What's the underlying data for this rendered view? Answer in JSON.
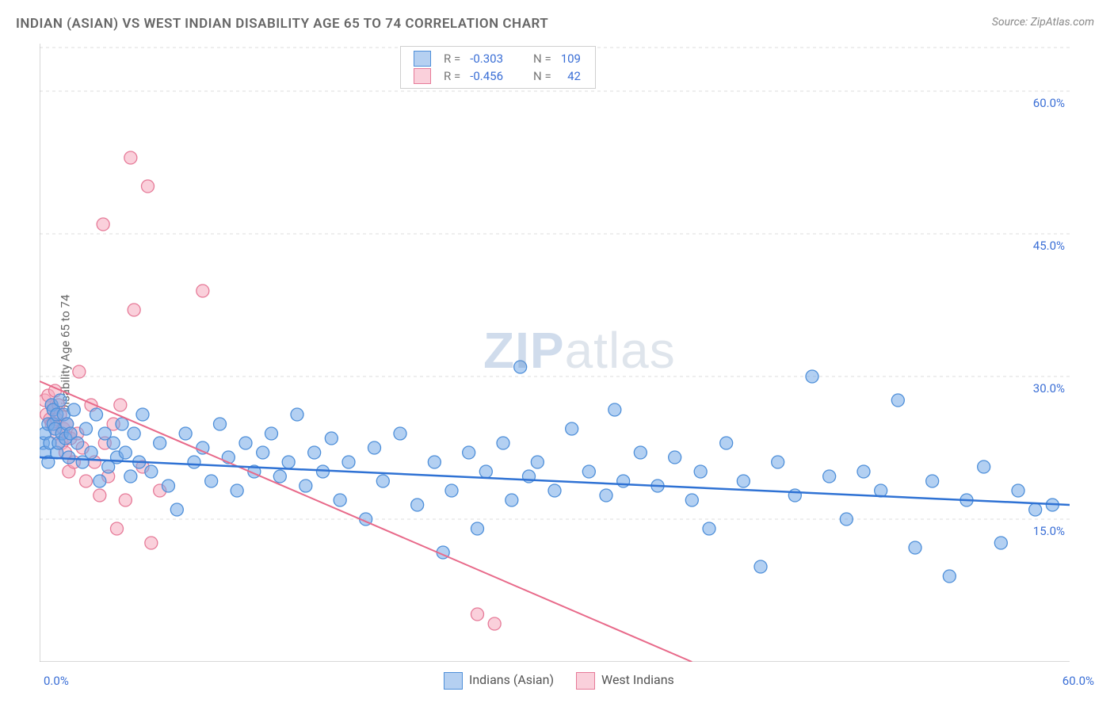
{
  "title": "INDIAN (ASIAN) VS WEST INDIAN DISABILITY AGE 65 TO 74 CORRELATION CHART",
  "source_label": "Source:",
  "source_name": "ZipAtlas.com",
  "y_axis_label": "Disability Age 65 to 74",
  "watermark_zip": "ZIP",
  "watermark_atlas": "atlas",
  "chart": {
    "type": "scatter",
    "xlim": [
      0,
      60
    ],
    "ylim": [
      0,
      65
    ],
    "y_ticks": [
      15,
      30,
      45,
      60
    ],
    "y_tick_labels": [
      "15.0%",
      "30.0%",
      "45.0%",
      "60.0%"
    ],
    "x_tick_min_label": "0.0%",
    "x_tick_max_label": "60.0%",
    "background_color": "#ffffff",
    "grid_color": "#dcdcdc",
    "marker_radius": 8,
    "series": [
      {
        "name": "Indians (Asian)",
        "color_fill": "rgba(116,170,231,0.55)",
        "color_stroke": "#4e8fd9",
        "trend_color": "#2f72d4",
        "R": "-0.303",
        "N": "109",
        "trend": {
          "x1": 0,
          "y1": 21.5,
          "x2": 60,
          "y2": 16.5
        },
        "points": [
          [
            0.2,
            23
          ],
          [
            0.3,
            24
          ],
          [
            0.3,
            22
          ],
          [
            0.5,
            25
          ],
          [
            0.5,
            21
          ],
          [
            0.6,
            23
          ],
          [
            0.7,
            27
          ],
          [
            0.8,
            26.5
          ],
          [
            0.8,
            25
          ],
          [
            0.9,
            24.5
          ],
          [
            1.0,
            26
          ],
          [
            1.0,
            22
          ],
          [
            1.1,
            23
          ],
          [
            1.2,
            27.5
          ],
          [
            1.3,
            24
          ],
          [
            1.4,
            26
          ],
          [
            1.5,
            23.5
          ],
          [
            1.6,
            25
          ],
          [
            1.7,
            21.5
          ],
          [
            1.8,
            24
          ],
          [
            2.0,
            26.5
          ],
          [
            2.2,
            23
          ],
          [
            2.5,
            21
          ],
          [
            2.7,
            24.5
          ],
          [
            3.0,
            22
          ],
          [
            3.3,
            26
          ],
          [
            3.5,
            19
          ],
          [
            3.8,
            24
          ],
          [
            4.0,
            20.5
          ],
          [
            4.3,
            23
          ],
          [
            4.5,
            21.5
          ],
          [
            4.8,
            25
          ],
          [
            5.0,
            22
          ],
          [
            5.3,
            19.5
          ],
          [
            5.5,
            24
          ],
          [
            5.8,
            21
          ],
          [
            6.0,
            26
          ],
          [
            6.5,
            20
          ],
          [
            7.0,
            23
          ],
          [
            7.5,
            18.5
          ],
          [
            8.0,
            16
          ],
          [
            8.5,
            24
          ],
          [
            9.0,
            21
          ],
          [
            9.5,
            22.5
          ],
          [
            10.0,
            19
          ],
          [
            10.5,
            25
          ],
          [
            11.0,
            21.5
          ],
          [
            11.5,
            18
          ],
          [
            12.0,
            23
          ],
          [
            12.5,
            20
          ],
          [
            13.0,
            22
          ],
          [
            13.5,
            24
          ],
          [
            14.0,
            19.5
          ],
          [
            14.5,
            21
          ],
          [
            15.0,
            26
          ],
          [
            15.5,
            18.5
          ],
          [
            16.0,
            22
          ],
          [
            16.5,
            20
          ],
          [
            17.0,
            23.5
          ],
          [
            17.5,
            17
          ],
          [
            18.0,
            21
          ],
          [
            19.0,
            15
          ],
          [
            19.5,
            22.5
          ],
          [
            20.0,
            19
          ],
          [
            21.0,
            24
          ],
          [
            22.0,
            16.5
          ],
          [
            23.0,
            21
          ],
          [
            23.5,
            11.5
          ],
          [
            24.0,
            18
          ],
          [
            25.0,
            22
          ],
          [
            25.5,
            14
          ],
          [
            26.0,
            20
          ],
          [
            27.0,
            23
          ],
          [
            27.5,
            17
          ],
          [
            28.0,
            31
          ],
          [
            28.5,
            19.5
          ],
          [
            29.0,
            21
          ],
          [
            30.0,
            18
          ],
          [
            31.0,
            24.5
          ],
          [
            32.0,
            20
          ],
          [
            33.0,
            17.5
          ],
          [
            33.5,
            26.5
          ],
          [
            34.0,
            19
          ],
          [
            35.0,
            22
          ],
          [
            36.0,
            18.5
          ],
          [
            37.0,
            21.5
          ],
          [
            38.0,
            17
          ],
          [
            38.5,
            20
          ],
          [
            39.0,
            14
          ],
          [
            40.0,
            23
          ],
          [
            41.0,
            19
          ],
          [
            42.0,
            10
          ],
          [
            43.0,
            21
          ],
          [
            44.0,
            17.5
          ],
          [
            45.0,
            30
          ],
          [
            46.0,
            19.5
          ],
          [
            47.0,
            15
          ],
          [
            48.0,
            20
          ],
          [
            49.0,
            18
          ],
          [
            50.0,
            27.5
          ],
          [
            51.0,
            12
          ],
          [
            52.0,
            19
          ],
          [
            53.0,
            9
          ],
          [
            54.0,
            17
          ],
          [
            55.0,
            20.5
          ],
          [
            56.0,
            12.5
          ],
          [
            57.0,
            18
          ],
          [
            58.0,
            16
          ],
          [
            59.0,
            16.5
          ]
        ]
      },
      {
        "name": "West Indians",
        "color_fill": "rgba(245,170,190,0.55)",
        "color_stroke": "#e67a98",
        "trend_color": "#e86a8a",
        "R": "-0.456",
        "N": "42",
        "trend": {
          "x1": 0,
          "y1": 29.5,
          "x2": 38,
          "y2": 0
        },
        "points": [
          [
            0.3,
            27.5
          ],
          [
            0.4,
            26
          ],
          [
            0.5,
            28
          ],
          [
            0.6,
            25.5
          ],
          [
            0.7,
            27
          ],
          [
            0.7,
            25
          ],
          [
            0.8,
            26.5
          ],
          [
            0.9,
            28.5
          ],
          [
            1.0,
            25.5
          ],
          [
            1.0,
            24
          ],
          [
            1.1,
            27
          ],
          [
            1.2,
            26
          ],
          [
            1.3,
            23
          ],
          [
            1.4,
            24.5
          ],
          [
            1.5,
            22
          ],
          [
            1.6,
            25
          ],
          [
            1.7,
            20
          ],
          [
            1.8,
            23.5
          ],
          [
            2.0,
            21
          ],
          [
            2.2,
            24
          ],
          [
            2.3,
            30.5
          ],
          [
            2.5,
            22.5
          ],
          [
            2.7,
            19
          ],
          [
            3.0,
            27
          ],
          [
            3.2,
            21
          ],
          [
            3.5,
            17.5
          ],
          [
            3.7,
            46
          ],
          [
            3.8,
            23
          ],
          [
            4.0,
            19.5
          ],
          [
            4.3,
            25
          ],
          [
            4.5,
            14
          ],
          [
            4.7,
            27
          ],
          [
            5.0,
            17
          ],
          [
            5.3,
            53
          ],
          [
            5.5,
            37
          ],
          [
            6.0,
            20.5
          ],
          [
            6.3,
            50
          ],
          [
            6.5,
            12.5
          ],
          [
            7.0,
            18
          ],
          [
            9.5,
            39
          ],
          [
            25.5,
            5
          ],
          [
            26.5,
            4
          ]
        ]
      }
    ]
  },
  "legend_top": {
    "R_label": "R =",
    "N_label": "N ="
  },
  "legend_bottom": {
    "labels": [
      "Indians (Asian)",
      "West Indians"
    ]
  }
}
